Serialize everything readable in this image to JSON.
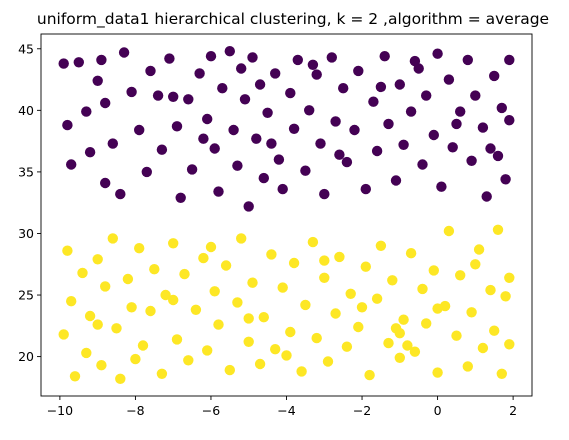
{
  "chart_data": {
    "type": "scatter",
    "title": "uniform_data1 hierarchical clustering, k = 2 ,algorithm = average",
    "xlabel": "",
    "ylabel": "",
    "xlim": [
      -10.5,
      2.5
    ],
    "ylim": [
      16.8,
      46.2
    ],
    "xticks": [
      -10,
      -8,
      -6,
      -4,
      -2,
      0,
      2
    ],
    "xtick_labels": [
      "−10",
      "−8",
      "−6",
      "−4",
      "−2",
      "0",
      "2"
    ],
    "yticks": [
      20,
      25,
      30,
      35,
      40,
      45
    ],
    "ytick_labels": [
      "20",
      "25",
      "30",
      "35",
      "40",
      "45"
    ],
    "grid": false,
    "legend": "none",
    "series": [
      {
        "cluster": 0,
        "color": "#440154",
        "points": [
          [
            -9.9,
            43.8
          ],
          [
            -9.8,
            38.8
          ],
          [
            -9.7,
            35.6
          ],
          [
            -9.5,
            43.9
          ],
          [
            -9.3,
            39.9
          ],
          [
            -9.2,
            36.6
          ],
          [
            -9.0,
            42.4
          ],
          [
            -8.9,
            44.1
          ],
          [
            -8.8,
            40.6
          ],
          [
            -8.6,
            37.3
          ],
          [
            -8.4,
            33.2
          ],
          [
            -8.3,
            44.7
          ],
          [
            -8.1,
            41.5
          ],
          [
            -7.9,
            38.4
          ],
          [
            -7.7,
            35.0
          ],
          [
            -7.6,
            43.2
          ],
          [
            -7.4,
            41.2
          ],
          [
            -7.3,
            36.8
          ],
          [
            -7.1,
            44.2
          ],
          [
            -6.9,
            38.7
          ],
          [
            -6.8,
            32.9
          ],
          [
            -6.6,
            40.9
          ],
          [
            -6.5,
            35.2
          ],
          [
            -6.3,
            43.0
          ],
          [
            -6.1,
            39.3
          ],
          [
            -6.0,
            44.4
          ],
          [
            -5.9,
            36.9
          ],
          [
            -5.8,
            33.4
          ],
          [
            -5.7,
            41.8
          ],
          [
            -5.5,
            44.8
          ],
          [
            -5.4,
            38.4
          ],
          [
            -5.3,
            35.5
          ],
          [
            -5.2,
            43.4
          ],
          [
            -5.1,
            40.9
          ],
          [
            -5.0,
            32.2
          ],
          [
            -4.9,
            44.3
          ],
          [
            -4.8,
            37.7
          ],
          [
            -4.7,
            42.1
          ],
          [
            -4.6,
            34.5
          ],
          [
            -4.5,
            39.8
          ],
          [
            -4.3,
            43.0
          ],
          [
            -4.2,
            36.0
          ],
          [
            -4.1,
            33.6
          ],
          [
            -3.9,
            41.4
          ],
          [
            -3.8,
            38.5
          ],
          [
            -3.7,
            44.1
          ],
          [
            -3.5,
            35.1
          ],
          [
            -3.4,
            40.0
          ],
          [
            -3.2,
            42.9
          ],
          [
            -3.1,
            37.3
          ],
          [
            -3.0,
            33.2
          ],
          [
            -2.8,
            44.3
          ],
          [
            -2.7,
            39.1
          ],
          [
            -2.5,
            41.8
          ],
          [
            -2.4,
            35.8
          ],
          [
            -2.2,
            38.4
          ],
          [
            -2.1,
            43.2
          ],
          [
            -1.9,
            33.6
          ],
          [
            -1.7,
            40.7
          ],
          [
            -1.6,
            36.7
          ],
          [
            -1.4,
            44.4
          ],
          [
            -1.3,
            38.9
          ],
          [
            -1.1,
            34.3
          ],
          [
            -1.0,
            42.1
          ],
          [
            -0.9,
            37.2
          ],
          [
            -0.7,
            39.9
          ],
          [
            -0.6,
            44.0
          ],
          [
            -0.4,
            35.6
          ],
          [
            -0.3,
            41.2
          ],
          [
            -0.1,
            38.0
          ],
          [
            0.0,
            44.6
          ],
          [
            0.1,
            33.8
          ],
          [
            0.3,
            42.5
          ],
          [
            0.4,
            37.0
          ],
          [
            0.6,
            39.9
          ],
          [
            0.8,
            44.1
          ],
          [
            0.9,
            35.9
          ],
          [
            1.0,
            41.2
          ],
          [
            1.2,
            38.6
          ],
          [
            1.3,
            33.0
          ],
          [
            1.5,
            42.8
          ],
          [
            1.6,
            36.3
          ],
          [
            1.7,
            40.2
          ],
          [
            1.8,
            34.4
          ],
          [
            1.9,
            39.2
          ],
          [
            1.9,
            44.1
          ],
          [
            -8.8,
            34.1
          ],
          [
            -7.0,
            41.1
          ],
          [
            -6.2,
            37.7
          ],
          [
            -4.4,
            37.3
          ],
          [
            -3.3,
            43.7
          ],
          [
            -2.6,
            36.4
          ],
          [
            -1.5,
            41.9
          ],
          [
            -0.5,
            43.4
          ],
          [
            0.5,
            38.9
          ],
          [
            1.4,
            36.9
          ]
        ]
      },
      {
        "cluster": 1,
        "color": "#fde725",
        "points": [
          [
            -9.9,
            21.8
          ],
          [
            -9.8,
            28.6
          ],
          [
            -9.7,
            24.5
          ],
          [
            -9.6,
            18.4
          ],
          [
            -9.4,
            26.8
          ],
          [
            -9.3,
            20.3
          ],
          [
            -9.2,
            23.3
          ],
          [
            -9.0,
            27.9
          ],
          [
            -8.9,
            19.3
          ],
          [
            -8.8,
            25.7
          ],
          [
            -8.6,
            29.6
          ],
          [
            -8.5,
            22.3
          ],
          [
            -8.4,
            18.2
          ],
          [
            -8.2,
            26.3
          ],
          [
            -8.1,
            24.0
          ],
          [
            -7.9,
            28.8
          ],
          [
            -7.8,
            20.9
          ],
          [
            -7.6,
            23.7
          ],
          [
            -7.5,
            27.1
          ],
          [
            -7.3,
            18.6
          ],
          [
            -7.2,
            25.0
          ],
          [
            -7.0,
            29.2
          ],
          [
            -6.9,
            21.4
          ],
          [
            -6.7,
            26.7
          ],
          [
            -6.6,
            19.7
          ],
          [
            -6.4,
            23.8
          ],
          [
            -6.2,
            28.0
          ],
          [
            -6.1,
            20.5
          ],
          [
            -5.9,
            25.3
          ],
          [
            -5.8,
            22.6
          ],
          [
            -5.6,
            27.4
          ],
          [
            -5.5,
            18.9
          ],
          [
            -5.3,
            24.4
          ],
          [
            -5.2,
            29.6
          ],
          [
            -5.0,
            21.2
          ],
          [
            -4.9,
            26.0
          ],
          [
            -4.7,
            19.4
          ],
          [
            -4.6,
            23.2
          ],
          [
            -4.4,
            28.3
          ],
          [
            -4.3,
            20.6
          ],
          [
            -4.1,
            25.6
          ],
          [
            -3.9,
            22.0
          ],
          [
            -3.8,
            27.6
          ],
          [
            -3.6,
            18.8
          ],
          [
            -3.5,
            24.2
          ],
          [
            -3.3,
            29.3
          ],
          [
            -3.2,
            21.5
          ],
          [
            -3.0,
            26.4
          ],
          [
            -2.9,
            19.6
          ],
          [
            -2.7,
            23.5
          ],
          [
            -2.6,
            28.1
          ],
          [
            -2.4,
            20.8
          ],
          [
            -2.3,
            25.1
          ],
          [
            -2.1,
            22.4
          ],
          [
            -1.9,
            27.3
          ],
          [
            -1.8,
            18.5
          ],
          [
            -1.6,
            24.7
          ],
          [
            -1.5,
            29.0
          ],
          [
            -1.3,
            21.1
          ],
          [
            -1.2,
            26.2
          ],
          [
            -1.0,
            19.9
          ],
          [
            -0.9,
            23.0
          ],
          [
            -0.7,
            28.4
          ],
          [
            -0.6,
            20.4
          ],
          [
            -0.4,
            25.5
          ],
          [
            -0.3,
            22.7
          ],
          [
            -0.1,
            27.0
          ],
          [
            0.0,
            18.7
          ],
          [
            0.2,
            24.1
          ],
          [
            0.3,
            30.2
          ],
          [
            0.5,
            21.7
          ],
          [
            0.6,
            26.6
          ],
          [
            0.8,
            19.2
          ],
          [
            0.9,
            23.6
          ],
          [
            1.1,
            28.7
          ],
          [
            1.2,
            20.7
          ],
          [
            1.4,
            25.4
          ],
          [
            1.5,
            22.1
          ],
          [
            1.6,
            30.3
          ],
          [
            1.7,
            18.6
          ],
          [
            1.8,
            24.9
          ],
          [
            1.9,
            26.4
          ],
          [
            1.9,
            21.0
          ],
          [
            -9.0,
            22.6
          ],
          [
            -8.0,
            19.8
          ],
          [
            -7.0,
            24.6
          ],
          [
            -6.0,
            28.9
          ],
          [
            -5.0,
            23.1
          ],
          [
            -4.0,
            20.1
          ],
          [
            -3.0,
            27.8
          ],
          [
            -2.0,
            24.0
          ],
          [
            -1.0,
            21.9
          ],
          [
            0.0,
            23.9
          ],
          [
            1.0,
            27.5
          ],
          [
            -0.8,
            20.9
          ],
          [
            -1.1,
            22.3
          ]
        ]
      }
    ]
  }
}
